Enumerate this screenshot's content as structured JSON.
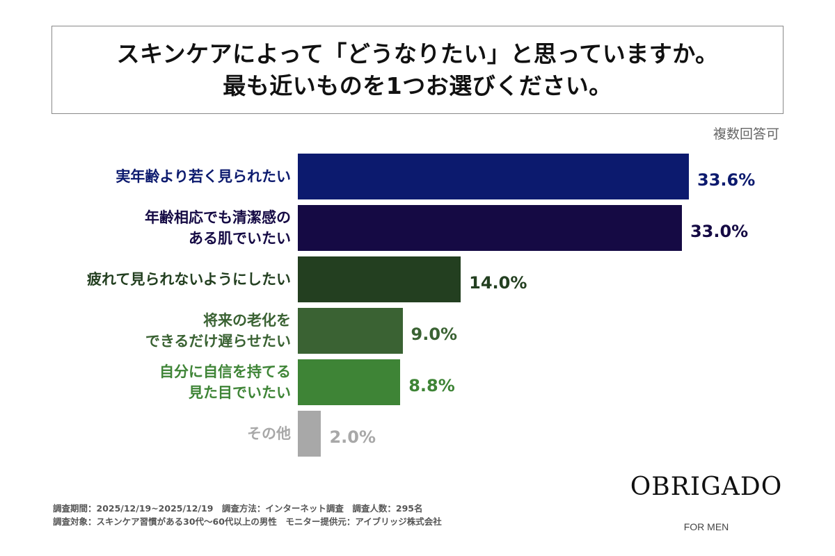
{
  "chart_data": {
    "type": "bar",
    "orientation": "horizontal",
    "title": [
      "スキンケアによって「どうなりたい」と思っていますか。",
      "最も近いものを1つお選びください。"
    ],
    "note": "複数回答可",
    "categories": [
      "実年齢より若く見られたい",
      "年齢相応でも清潔感の\nある肌でいたい",
      "疲れて見られないようにしたい",
      "将来の老化を\nできるだけ遅らせたい",
      "自分に自信を持てる\n見た目でいたい",
      "その他"
    ],
    "values": [
      33.6,
      33.0,
      14.0,
      9.0,
      8.8,
      2.0
    ],
    "value_labels": [
      "33.6%",
      "33.0%",
      "14.0%",
      "9.0%",
      "8.8%",
      "2.0%"
    ],
    "colors": [
      "#0c1a6e",
      "#150a44",
      "#233f20",
      "#3a6233",
      "#3e8436",
      "#a8a8a8"
    ],
    "label_colors": [
      "#0c1a6e",
      "#150a44",
      "#233f20",
      "#3a6233",
      "#3e8436",
      "#a8a8a8"
    ],
    "xlim": [
      0,
      33.6
    ],
    "grid": false,
    "legend": "none"
  },
  "footer": {
    "line1": "調査期間：2025/12/19~2025/12/19　調査方法：インターネット調査　調査人数：295名",
    "line2": "調査対象：スキンケア習慣がある30代～60代以上の男性　モニター提供元：アイブリッジ株式会社"
  },
  "brand": {
    "logo": "OBRIGADO",
    "sub": "FOR MEN"
  }
}
